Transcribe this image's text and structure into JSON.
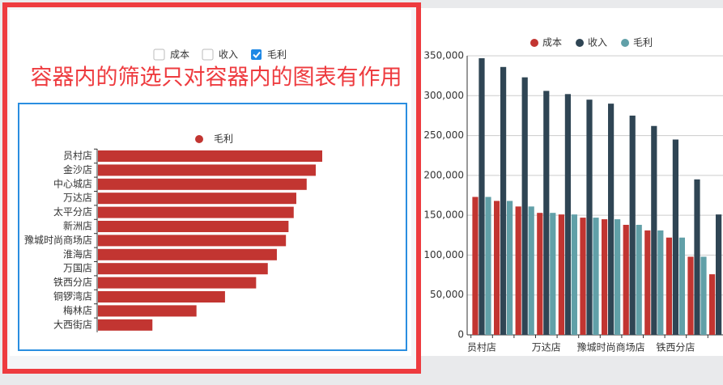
{
  "filters": [
    {
      "label": "成本",
      "checked": false
    },
    {
      "label": "收入",
      "checked": false
    },
    {
      "label": "毛利",
      "checked": true
    }
  ],
  "annotation": "容器内的筛选只对容器内的图表有作用",
  "chart_data": [
    {
      "type": "hbar",
      "categories": [
        "员村店",
        "金沙店",
        "中心城店",
        "万达店",
        "太平分店",
        "新洲店",
        "豫城时尚商场店",
        "淮海店",
        "万国店",
        "铁西分店",
        "铜锣湾店",
        "梅林店",
        "大西街店"
      ],
      "series": [
        {
          "name": "毛利",
          "color": "#c23531",
          "values": [
            173000,
            168000,
            161000,
            153000,
            151000,
            147000,
            145000,
            138000,
            131000,
            122000,
            98000,
            76000,
            42000
          ]
        }
      ]
    },
    {
      "type": "bar",
      "categories": [
        "员村店",
        null,
        null,
        "万达店",
        null,
        null,
        "豫城时尚商场店",
        null,
        null,
        "铁西分店",
        null,
        null
      ],
      "series": [
        {
          "name": "成本",
          "color": "#c23531",
          "values": [
            173000,
            168000,
            161000,
            153000,
            151000,
            147000,
            145000,
            138000,
            131000,
            122000,
            98000,
            76000
          ]
        },
        {
          "name": "收入",
          "color": "#2f4554",
          "values": [
            347000,
            336000,
            323000,
            306000,
            302000,
            295000,
            290000,
            275000,
            262000,
            245000,
            195000,
            151000
          ]
        },
        {
          "name": "毛利",
          "color": "#61a0a8",
          "values": [
            173000,
            168000,
            161000,
            153000,
            151000,
            147000,
            145000,
            138000,
            131000,
            122000,
            98000,
            null
          ]
        }
      ],
      "ylim": [
        0,
        350000
      ],
      "yticks": [
        0,
        {
          "value": 50000,
          "label": "50,000"
        },
        {
          "value": 100000,
          "label": "100,000"
        },
        {
          "value": 150000,
          "label": "150,000"
        },
        {
          "value": 200000,
          "label": "200,000"
        },
        {
          "value": 250000,
          "label": "250,000"
        },
        {
          "value": 300000,
          "label": "300,000"
        },
        {
          "value": 350000,
          "label": "350,000"
        }
      ],
      "grid": true
    }
  ]
}
